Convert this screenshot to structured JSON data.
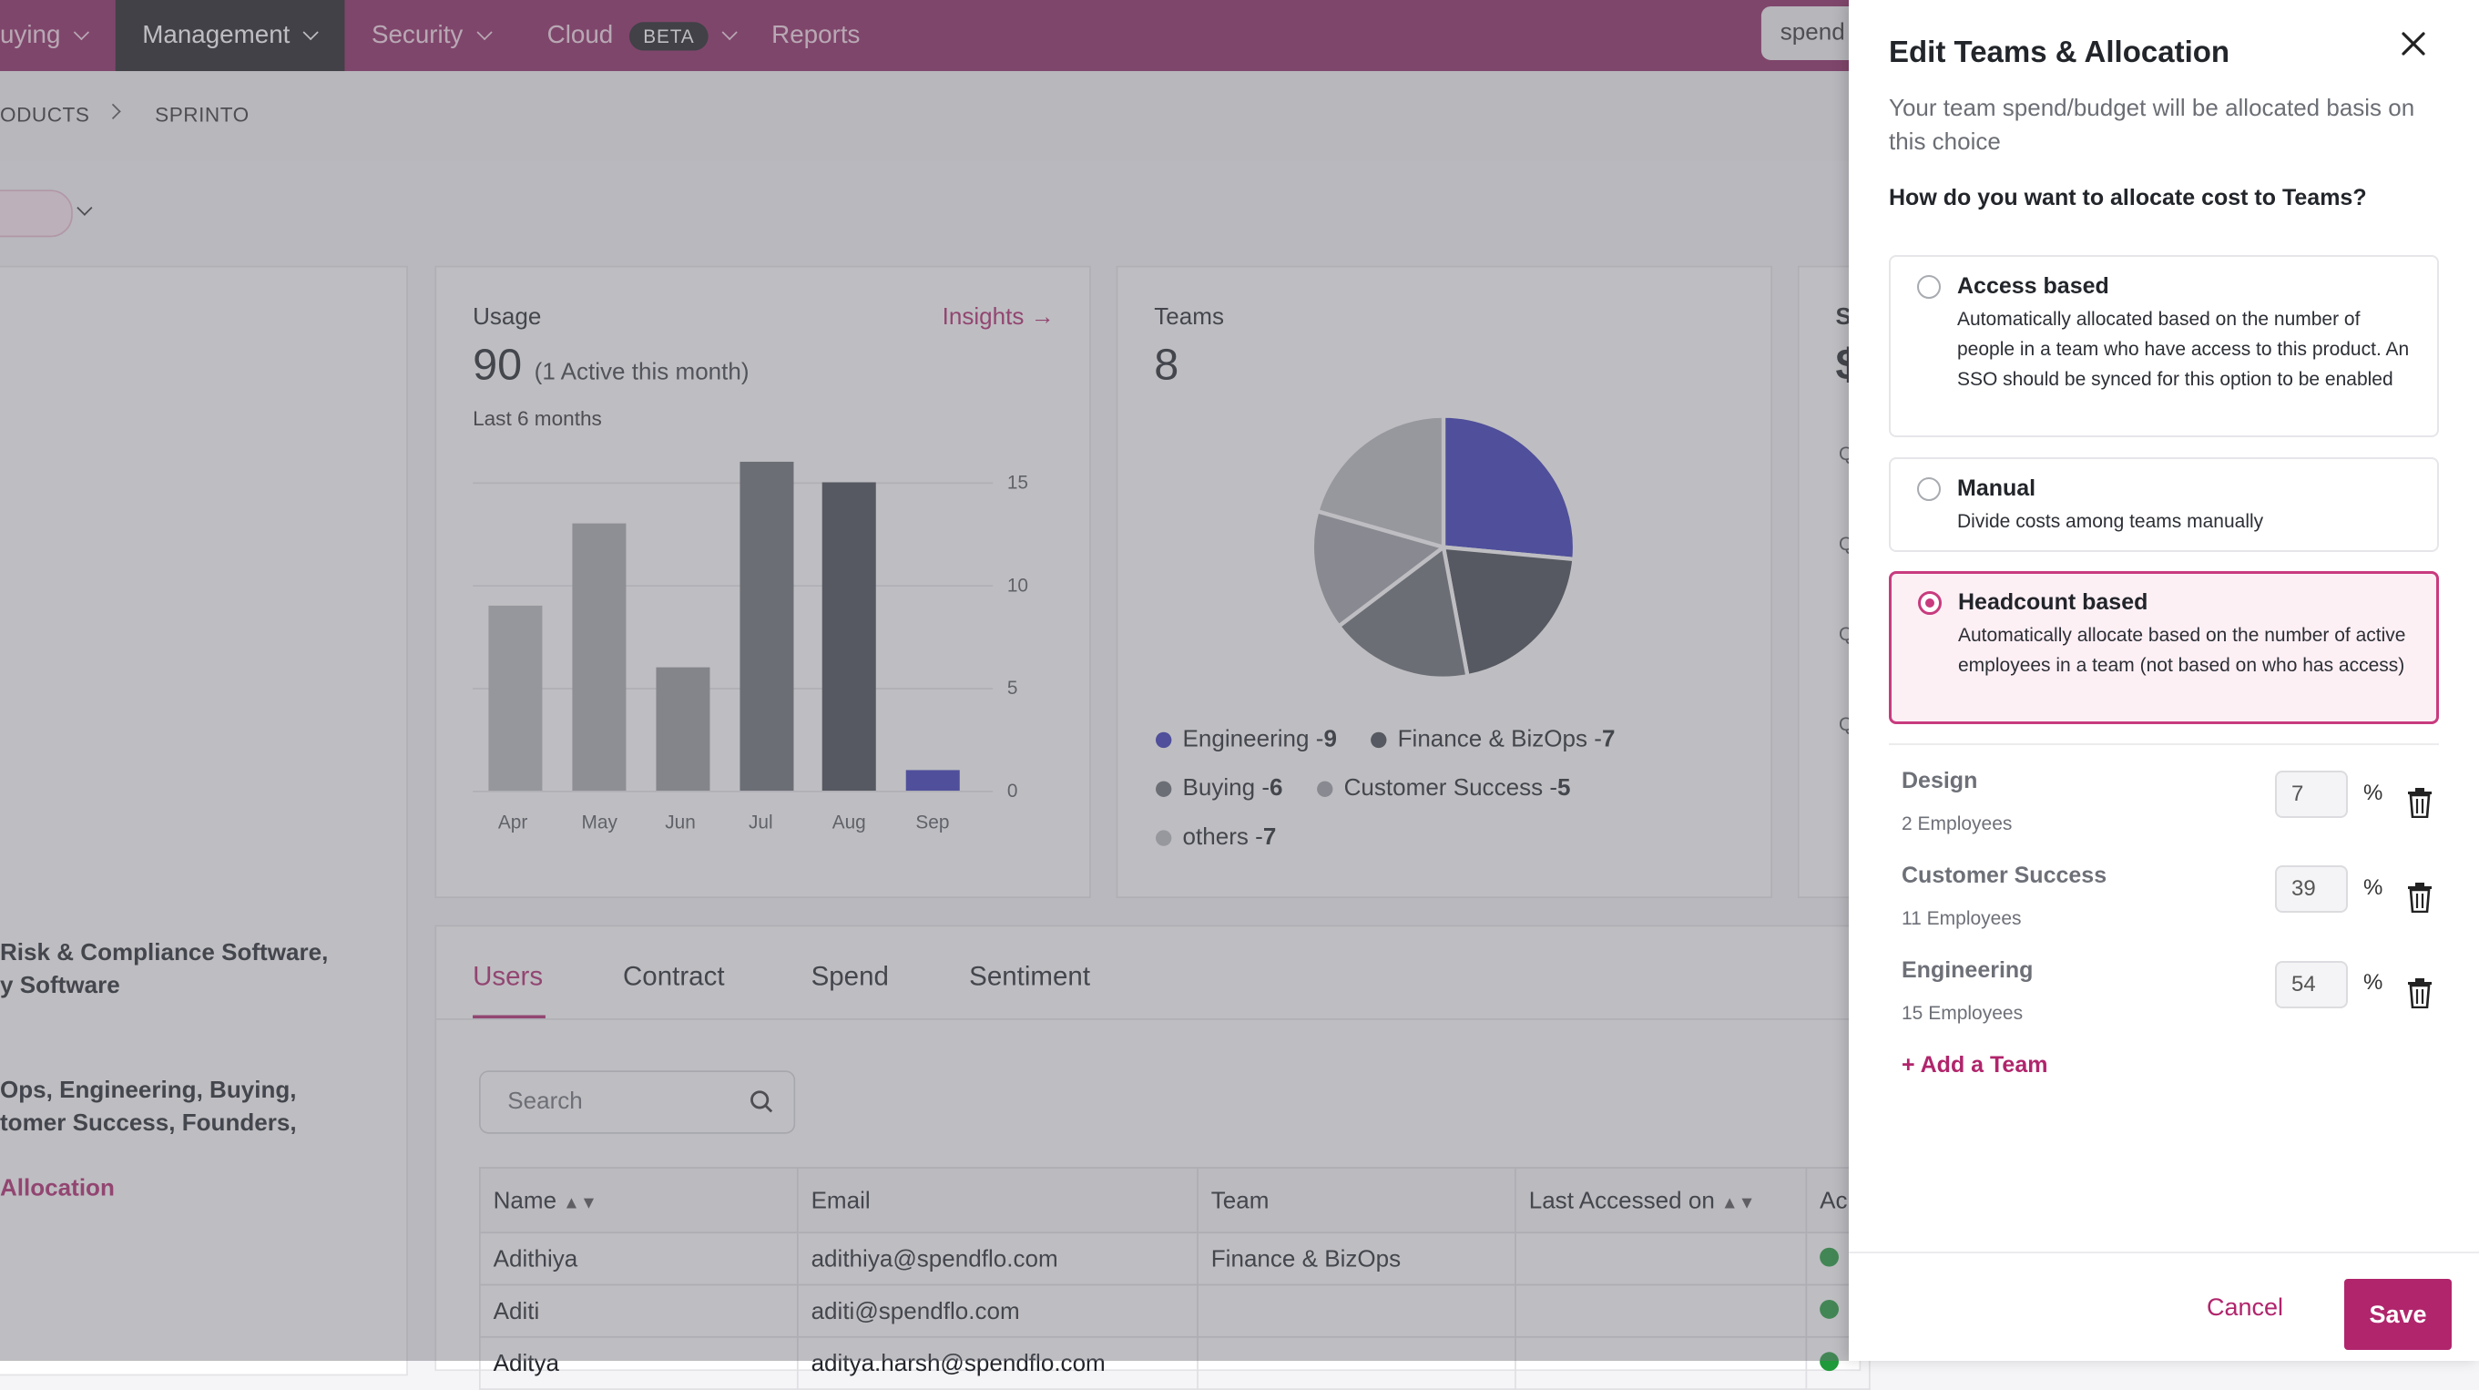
{
  "nav": {
    "items": [
      "uying",
      "Management",
      "Security",
      "Cloud",
      "Reports"
    ],
    "beta_badge": "BETA",
    "search_value": "spend"
  },
  "breadcrumb": [
    "ODUCTS",
    "SPRINTO"
  ],
  "usage": {
    "title": "Usage",
    "count": "90",
    "active_note": "(1 Active this month)",
    "period": "Last 6 months",
    "insights_link": "Insights →"
  },
  "chart_data": [
    {
      "type": "bar",
      "categories": [
        "Apr",
        "May",
        "Jun",
        "Jul",
        "Aug",
        "Sep"
      ],
      "values": [
        9,
        13,
        6,
        16,
        15,
        1
      ],
      "ylim": [
        0,
        15
      ],
      "yticks": [
        "0",
        "5",
        "10",
        "15"
      ],
      "colors": [
        "#b7b7bc",
        "#a8a8ad",
        "#96979c",
        "#6a6d74",
        "#434850",
        "#3636b8"
      ],
      "grid": true
    },
    {
      "type": "pie",
      "slices": [
        {
          "label": "Engineering",
          "value": 9,
          "color": "#3636b8"
        },
        {
          "label": "Finance & BizOps",
          "value": 7,
          "color": "#43474f"
        },
        {
          "label": "Buying",
          "value": 6,
          "color": "#6b6e75"
        },
        {
          "label": "Customer Success",
          "value": 5,
          "color": "#9fa0a6"
        },
        {
          "label": "others",
          "value": 7,
          "color": "#b8b8be"
        }
      ]
    }
  ],
  "teams_card": {
    "title": "Teams",
    "count": "8",
    "legend": [
      {
        "name": "Engineering - ",
        "value": "9"
      },
      {
        "name": "Finance & BizOps - ",
        "value": "7"
      },
      {
        "name": "Buying - ",
        "value": "6"
      },
      {
        "name": "Customer Success - ",
        "value": "5"
      },
      {
        "name": "others - ",
        "value": "7"
      }
    ]
  },
  "third_card": {
    "title": "S",
    "value": "$",
    "rows": [
      "Q",
      "Q",
      "Q",
      "Q"
    ]
  },
  "side": {
    "categories_line1": "Risk & Compliance Software,",
    "categories_line2": "y Software",
    "teams_line1": "Ops, Engineering, Buying,",
    "teams_line2": "tomer Success, Founders,",
    "allocation_link": "Allocation"
  },
  "tabs": [
    "Users",
    "Contract",
    "Spend",
    "Sentiment"
  ],
  "users_search_placeholder": "Search",
  "table": {
    "headers": [
      "Name",
      "Email",
      "Team",
      "Last Accessed on",
      "Ac"
    ],
    "rows": [
      {
        "name": "Adithiya",
        "email": "adithiya@spendflo.com",
        "team": "Finance & BizOps"
      },
      {
        "name": "Aditi",
        "email": "aditi@spendflo.com",
        "team": ""
      },
      {
        "name": "Aditya",
        "email": "aditya.harsh@spendflo.com",
        "team": ""
      }
    ]
  },
  "drawer": {
    "title": "Edit Teams & Allocation",
    "subtitle": "Your team spend/budget will be allocated basis on this choice",
    "question": "How do you want to allocate cost to Teams?",
    "options": [
      {
        "title": "Access based",
        "desc": "Automatically allocated based on the number of people in a team who have access to this product. An SSO should be synced for this option to be enabled",
        "selected": false
      },
      {
        "title": "Manual",
        "desc": "Divide costs among teams manually",
        "selected": false
      },
      {
        "title": "Headcount based",
        "desc": "Automatically allocate based on the number of active employees in a team (not based on who has access)",
        "selected": true
      }
    ],
    "teams": [
      {
        "name": "Design",
        "employees": "2 Employees",
        "percent": "7"
      },
      {
        "name": "Customer Success",
        "employees": "11 Employees",
        "percent": "39"
      },
      {
        "name": "Engineering",
        "employees": "15 Employees",
        "percent": "54"
      }
    ],
    "percent_sign": "%",
    "add_team": "+ Add a Team",
    "cancel": "Cancel",
    "save": "Save"
  },
  "colors": {
    "brand": "#8d2561",
    "accent": "#b0256c",
    "status_active": "#1f9a3a"
  }
}
